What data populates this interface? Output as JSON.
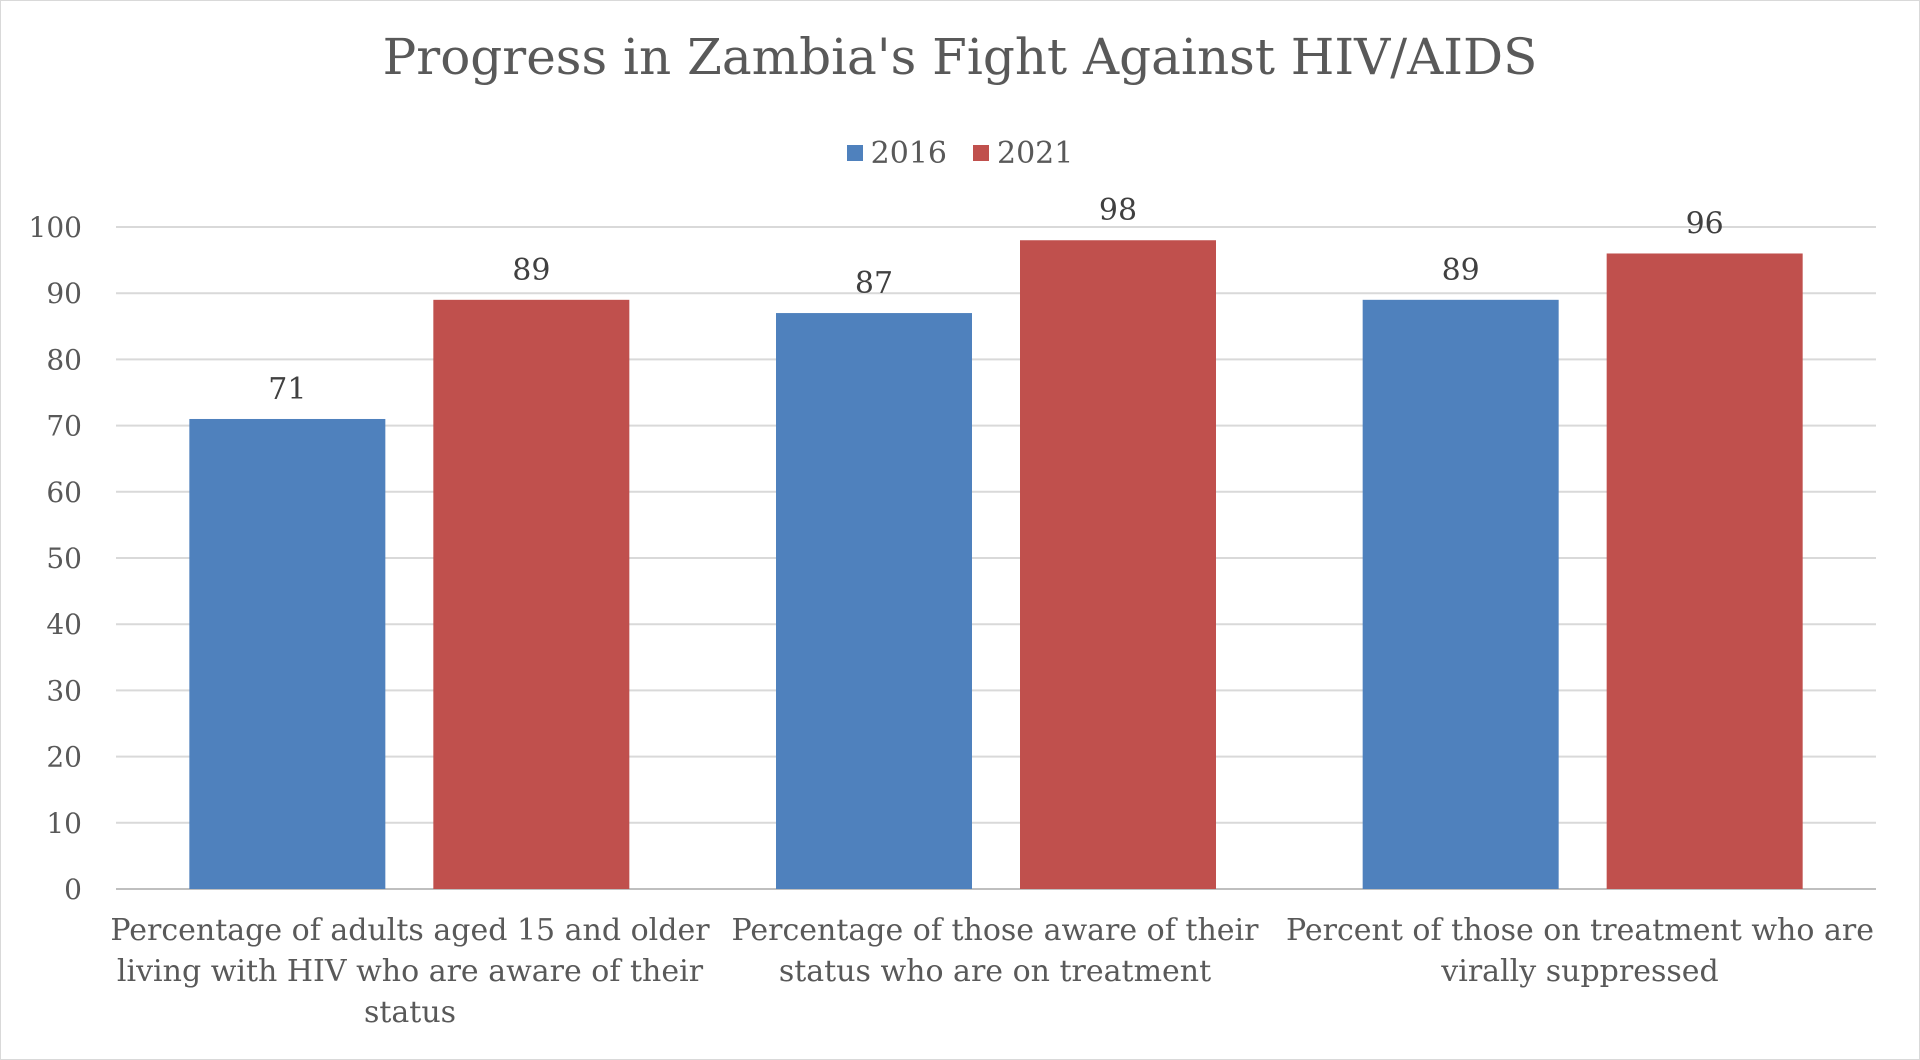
{
  "chart_data": {
    "type": "bar",
    "title": "Progress in Zambia's Fight Against HIV/AIDS",
    "categories": [
      "Percentage of adults aged 15 and older living with HIV who are aware of their status",
      "Percentage of those aware of their status who are on treatment",
      "Percent of those on treatment who are virally suppressed"
    ],
    "series": [
      {
        "name": "2016",
        "color": "#4f81bd",
        "values": [
          71,
          87,
          89
        ]
      },
      {
        "name": "2021",
        "color": "#c0504d",
        "values": [
          89,
          98,
          96
        ]
      }
    ],
    "ylim": [
      0,
      100
    ],
    "yticks": [
      0,
      10,
      20,
      30,
      40,
      50,
      60,
      70,
      80,
      90,
      100
    ],
    "grid": true,
    "legend_position": "top"
  }
}
